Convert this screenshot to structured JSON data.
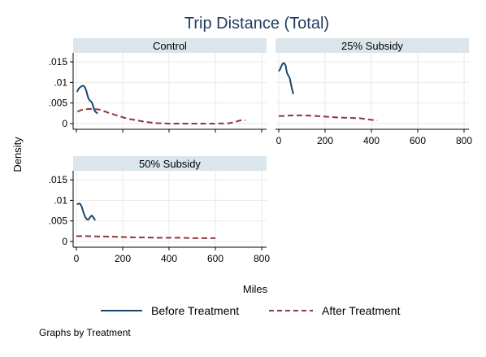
{
  "chart_data": {
    "type": "line",
    "title": "Trip Distance (Total)",
    "xlabel": "Miles",
    "ylabel": "Density",
    "note": "Graphs by Treatment",
    "xlim": [
      0,
      800
    ],
    "ylim": [
      0,
      0.016
    ],
    "x_ticks": [
      0,
      200,
      400,
      600,
      800
    ],
    "x_tick_labels": [
      "0",
      "200",
      "400",
      "600",
      "800"
    ],
    "y_ticks": [
      0,
      0.005,
      0.01,
      0.015
    ],
    "y_tick_labels": [
      "0",
      ".005",
      ".01",
      ".015"
    ],
    "grid": true,
    "legend_position": "bottom",
    "legend": [
      {
        "name": "Before Treatment",
        "color": "#1a476f",
        "dash": "solid"
      },
      {
        "name": "After Treatment",
        "color": "#90353b",
        "dash": "dashed"
      }
    ],
    "panels": [
      {
        "label": "Control",
        "series": [
          {
            "name": "Before Treatment",
            "points": [
              [
                3,
                0.0077
              ],
              [
                8,
                0.0083
              ],
              [
                13,
                0.0087
              ],
              [
                18,
                0.0089
              ],
              [
                23,
                0.0091
              ],
              [
                28,
                0.0092
              ],
              [
                33,
                0.0091
              ],
              [
                38,
                0.0087
              ],
              [
                43,
                0.0079
              ],
              [
                48,
                0.0068
              ],
              [
                53,
                0.006
              ],
              [
                58,
                0.0056
              ],
              [
                63,
                0.0054
              ],
              [
                68,
                0.005
              ],
              [
                72,
                0.0043
              ],
              [
                76,
                0.0035
              ],
              [
                80,
                0.003
              ],
              [
                84,
                0.0028
              ],
              [
                88,
                0.0026
              ],
              [
                92,
                0.0025
              ]
            ]
          },
          {
            "name": "After Treatment",
            "points": [
              [
                5,
                0.0029
              ],
              [
                20,
                0.0033
              ],
              [
                40,
                0.0035
              ],
              [
                70,
                0.0036
              ],
              [
                100,
                0.0034
              ],
              [
                140,
                0.0026
              ],
              [
                180,
                0.0019
              ],
              [
                220,
                0.0012
              ],
              [
                260,
                0.0008
              ],
              [
                300,
                0.0004
              ],
              [
                350,
                0.0001
              ],
              [
                400,
                0.0
              ],
              [
                500,
                0.0
              ],
              [
                600,
                0.0
              ],
              [
                660,
                0.0001
              ],
              [
                690,
                0.0005
              ],
              [
                710,
                0.0008
              ],
              [
                730,
                0.0008
              ]
            ]
          }
        ]
      },
      {
        "label": "25% Subsidy",
        "series": [
          {
            "name": "Before Treatment",
            "points": [
              [
                0,
                0.0127
              ],
              [
                5,
                0.0131
              ],
              [
                10,
                0.0138
              ],
              [
                15,
                0.0144
              ],
              [
                20,
                0.0147
              ],
              [
                25,
                0.0146
              ],
              [
                30,
                0.014
              ],
              [
                33,
                0.013
              ],
              [
                36,
                0.0122
              ],
              [
                40,
                0.0118
              ],
              [
                44,
                0.0115
              ],
              [
                48,
                0.0109
              ],
              [
                52,
                0.0098
              ],
              [
                56,
                0.0087
              ],
              [
                60,
                0.0078
              ],
              [
                63,
                0.0072
              ]
            ]
          },
          {
            "name": "After Treatment",
            "points": [
              [
                0,
                0.0018
              ],
              [
                30,
                0.0019
              ],
              [
                60,
                0.002
              ],
              [
                100,
                0.002
              ],
              [
                150,
                0.0019
              ],
              [
                200,
                0.0017
              ],
              [
                250,
                0.0015
              ],
              [
                300,
                0.0014
              ],
              [
                350,
                0.0013
              ],
              [
                400,
                0.0009
              ],
              [
                425,
                0.0008
              ]
            ]
          }
        ]
      },
      {
        "label": "50% Subsidy",
        "series": [
          {
            "name": "Before Treatment",
            "points": [
              [
                2,
                0.009
              ],
              [
                6,
                0.0091
              ],
              [
                10,
                0.0092
              ],
              [
                14,
                0.0092
              ],
              [
                18,
                0.009
              ],
              [
                22,
                0.0086
              ],
              [
                26,
                0.0079
              ],
              [
                30,
                0.0072
              ],
              [
                34,
                0.0065
              ],
              [
                38,
                0.006
              ],
              [
                42,
                0.0056
              ],
              [
                46,
                0.0054
              ],
              [
                50,
                0.0053
              ],
              [
                54,
                0.0055
              ],
              [
                58,
                0.0058
              ],
              [
                62,
                0.0061
              ],
              [
                66,
                0.0063
              ],
              [
                70,
                0.0061
              ],
              [
                74,
                0.0058
              ],
              [
                78,
                0.0054
              ],
              [
                82,
                0.0052
              ]
            ]
          },
          {
            "name": "After Treatment",
            "points": [
              [
                0,
                0.0013
              ],
              [
                50,
                0.0013
              ],
              [
                100,
                0.0012
              ],
              [
                150,
                0.0012
              ],
              [
                200,
                0.0011
              ],
              [
                250,
                0.001
              ],
              [
                300,
                0.001
              ],
              [
                350,
                0.0009
              ],
              [
                400,
                0.0009
              ],
              [
                450,
                0.0009
              ],
              [
                500,
                0.0008
              ],
              [
                550,
                0.0008
              ],
              [
                600,
                0.0008
              ]
            ]
          }
        ]
      }
    ]
  }
}
